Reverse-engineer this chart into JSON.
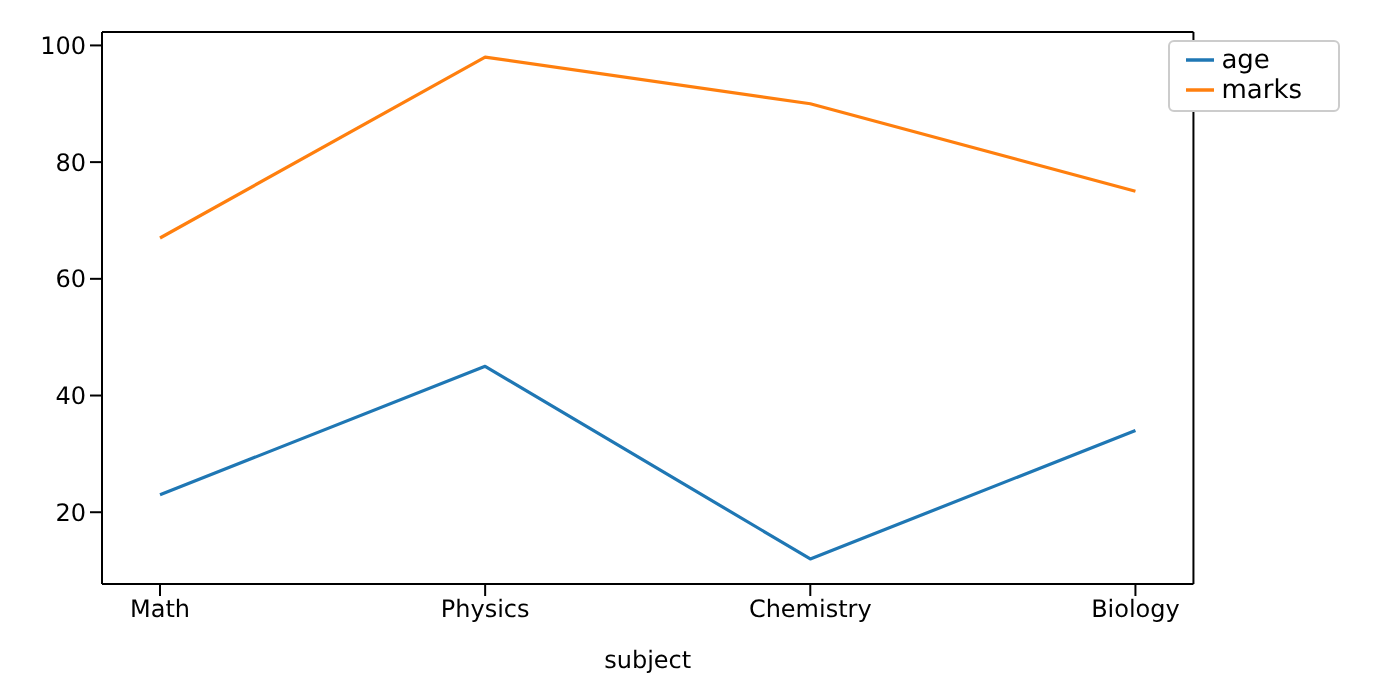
{
  "chart_data": {
    "type": "line",
    "xlabel": "subject",
    "categories": [
      "Math",
      "Physics",
      "Chemistry",
      "Biology"
    ],
    "ylim": [
      7.7,
      102.3
    ],
    "yticks": [
      20,
      40,
      60,
      80,
      100
    ],
    "series": [
      {
        "name": "age",
        "color": "#1f77b4",
        "values": [
          23,
          45,
          12,
          34
        ]
      },
      {
        "name": "marks",
        "color": "#ff7f0e",
        "values": [
          67,
          98,
          90,
          75
        ]
      }
    ],
    "grid": false,
    "legend": "top right",
    "marker": "none",
    "line_style": "solid"
  }
}
